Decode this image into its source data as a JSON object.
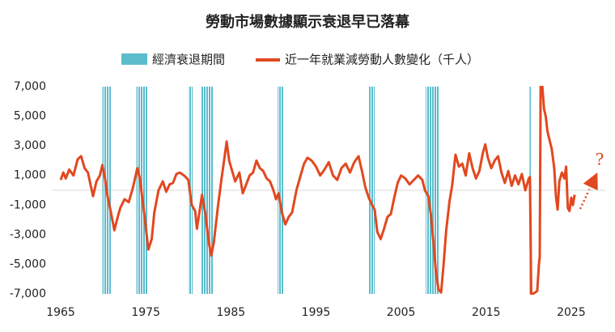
{
  "chart_data": {
    "type": "line",
    "title": "勞動市場數據顯示衰退早已落幕",
    "annotation": "?",
    "xlim": [
      1964,
      2029
    ],
    "xticks": [
      1965,
      1975,
      1985,
      1995,
      2005,
      2015,
      2025
    ],
    "ylim": [
      -7000,
      7000
    ],
    "yticks": [
      {
        "value": 7000,
        "label": "7,000"
      },
      {
        "value": 5000,
        "label": "5,000"
      },
      {
        "value": 3000,
        "label": "3,000"
      },
      {
        "value": 1000,
        "label": "1,000"
      },
      {
        "value": -1000,
        "label": "-1,000"
      },
      {
        "value": -3000,
        "label": "-3,000"
      },
      {
        "value": -5000,
        "label": "-5,000"
      },
      {
        "value": -7000,
        "label": "-7,000"
      }
    ],
    "series": [
      {
        "name": "經濟衰退期間",
        "color": "#5bbccc",
        "ranges": [
          [
            1969.9,
            1970.9
          ],
          [
            1973.9,
            1975.2
          ],
          [
            1980.0,
            1980.5
          ],
          [
            1981.5,
            1982.9
          ],
          [
            1990.5,
            1991.2
          ],
          [
            2001.2,
            2001.9
          ],
          [
            2007.9,
            2009.5
          ],
          [
            2020.1,
            2020.3
          ]
        ]
      },
      {
        "name": "近一年就業減勞動人數變化（千人）",
        "color": "#e2481f",
        "x": [
          1965.0,
          1965.3,
          1965.6,
          1966.0,
          1966.5,
          1967.0,
          1967.4,
          1967.8,
          1968.2,
          1968.5,
          1968.8,
          1969.2,
          1969.6,
          1969.9,
          1970.2,
          1970.5,
          1970.9,
          1971.3,
          1971.7,
          1972.0,
          1972.5,
          1973.0,
          1973.5,
          1974.0,
          1974.3,
          1974.7,
          1975.0,
          1975.3,
          1975.7,
          1976.0,
          1976.5,
          1977.0,
          1977.4,
          1977.8,
          1978.2,
          1978.6,
          1979.0,
          1979.5,
          1980.0,
          1980.4,
          1980.8,
          1981.0,
          1981.3,
          1981.6,
          1982.0,
          1982.4,
          1982.7,
          1983.0,
          1983.5,
          1983.9,
          1984.2,
          1984.5,
          1984.8,
          1985.1,
          1985.5,
          1986.0,
          1986.4,
          1986.8,
          1987.2,
          1987.6,
          1988.0,
          1988.4,
          1988.8,
          1989.2,
          1989.6,
          1990.0,
          1990.3,
          1990.6,
          1991.0,
          1991.4,
          1991.8,
          1992.2,
          1992.7,
          1993.2,
          1993.6,
          1994.0,
          1994.5,
          1995.0,
          1995.5,
          1996.0,
          1996.5,
          1997.0,
          1997.5,
          1998.0,
          1998.5,
          1999.0,
          1999.5,
          2000.0,
          2000.4,
          2000.8,
          2001.2,
          2001.6,
          2001.9,
          2002.2,
          2002.6,
          2003.0,
          2003.4,
          2003.8,
          2004.2,
          2004.6,
          2005.0,
          2005.5,
          2006.0,
          2006.5,
          2007.0,
          2007.5,
          2007.8,
          2008.2,
          2008.5,
          2008.8,
          2009.1,
          2009.4,
          2009.7,
          2010.0,
          2010.3,
          2010.7,
          2011.0,
          2011.4,
          2011.8,
          2012.2,
          2012.6,
          2013.0,
          2013.4,
          2013.8,
          2014.2,
          2014.6,
          2014.9,
          2015.2,
          2015.6,
          2016.0,
          2016.4,
          2016.8,
          2017.2,
          2017.6,
          2018.0,
          2018.4,
          2018.8,
          2019.2,
          2019.6,
          2020.0,
          2020.15,
          2020.3,
          2020.5,
          2021.0,
          2021.2,
          2021.3,
          2021.4,
          2021.6,
          2021.8,
          2022.0,
          2022.2,
          2022.4,
          2022.7,
          2023.0,
          2023.2,
          2023.4,
          2023.6,
          2023.9,
          2024.2,
          2024.4,
          2024.6,
          2024.8,
          2025.0,
          2025.2,
          2025.4
        ],
        "values": [
          700,
          1200,
          800,
          1400,
          1000,
          2100,
          2300,
          1500,
          1200,
          400,
          -400,
          600,
          1000,
          1700,
          800,
          -400,
          -1500,
          -2700,
          -1800,
          -1200,
          -600,
          -800,
          200,
          1500,
          800,
          -1000,
          -2500,
          -4000,
          -3300,
          -1500,
          0,
          600,
          -100,
          400,
          500,
          1100,
          1200,
          1000,
          700,
          -1000,
          -1400,
          -2600,
          -1500,
          -300,
          -1600,
          -3500,
          -4400,
          -3500,
          -1000,
          800,
          2000,
          3300,
          2000,
          1400,
          600,
          1200,
          -200,
          400,
          1000,
          1200,
          2000,
          1500,
          1300,
          800,
          600,
          0,
          -600,
          -200,
          -1500,
          -2300,
          -1800,
          -1500,
          0,
          1000,
          1800,
          2200,
          2000,
          1600,
          1000,
          1400,
          1900,
          1000,
          700,
          1500,
          1800,
          1200,
          1900,
          2300,
          1300,
          200,
          -500,
          -1000,
          -1300,
          -2800,
          -3300,
          -2600,
          -1800,
          -1600,
          -500,
          500,
          1000,
          800,
          400,
          700,
          1000,
          700,
          0,
          -400,
          -1600,
          -3500,
          -5500,
          -6700,
          -6900,
          -5000,
          -2700,
          -700,
          300,
          2400,
          1600,
          1800,
          1000,
          2500,
          1500,
          800,
          1300,
          2500,
          3100,
          2200,
          1500,
          2000,
          2300,
          1200,
          500,
          1300,
          300,
          1000,
          400,
          1100,
          0,
          800,
          900,
          -7000,
          -7000,
          -6800,
          -5000,
          -4500,
          7000,
          7000,
          5500,
          5000,
          4000,
          3500,
          2800,
          1500,
          -400,
          -1300,
          600,
          1200,
          800,
          1600,
          -1200,
          -1400,
          -500,
          -1000,
          -300
        ]
      }
    ]
  }
}
